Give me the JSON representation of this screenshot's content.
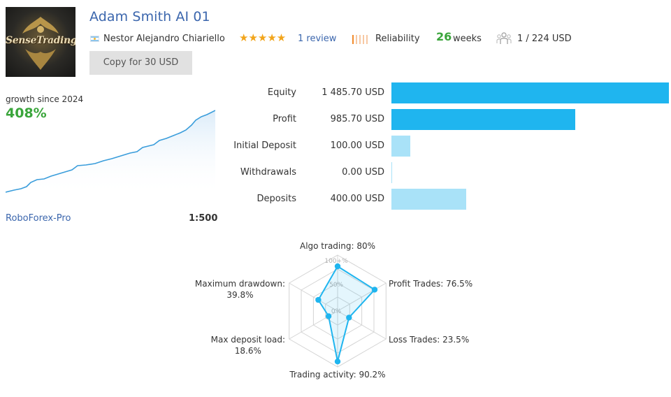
{
  "header": {
    "title": "Adam Smith AI 01",
    "logo_text": "SenseTrading",
    "author": "Nestor Alejandro Chiariello",
    "stars": "★★★★★",
    "review": "1 review",
    "reliability": "Reliability",
    "weeks_num": "26",
    "weeks_label": "weeks",
    "subscribers": "1 / 224 USD",
    "copy_button": "Copy for 30 USD"
  },
  "colors": {
    "accent_blue": "#3b66ad",
    "green": "#3aa53b",
    "bar_strong": "#1fb5ef",
    "bar_light": "#a9e2f8",
    "star": "#f2a51b"
  },
  "growth": {
    "label": "growth since 2024",
    "value": "408%",
    "broker": "RoboForex-Pro",
    "leverage": "1:500"
  },
  "account": {
    "rows": [
      {
        "label": "Equity",
        "value": "1 485.70 USD",
        "amount": 1485.7,
        "style": "strong"
      },
      {
        "label": "Profit",
        "value": "985.70 USD",
        "amount": 985.7,
        "style": "strong"
      },
      {
        "label": "Initial Deposit",
        "value": "100.00 USD",
        "amount": 100.0,
        "style": "light"
      },
      {
        "label": "Withdrawals",
        "value": "0.00 USD",
        "amount": 0.0,
        "style": "light"
      },
      {
        "label": "Deposits",
        "value": "400.00 USD",
        "amount": 400.0,
        "style": "light"
      }
    ]
  },
  "chart_data": {
    "type": "radar",
    "axes": [
      {
        "label": "Algo trading: 80%",
        "value": 80
      },
      {
        "label": "Profit Trades: 76.5%",
        "value": 76.5
      },
      {
        "label": "Loss Trades: 23.5%",
        "value": 23.5
      },
      {
        "label": "Trading activity: 90.2%",
        "value": 90.2
      },
      {
        "label": "Max deposit load:",
        "label2": "18.6%",
        "value": 18.6
      },
      {
        "label": "Maximum drawdown:",
        "label2": "39.8%",
        "value": 39.8
      }
    ],
    "scale_labels": [
      "100+%",
      "50%",
      "0%"
    ],
    "range": [
      0,
      100
    ]
  }
}
